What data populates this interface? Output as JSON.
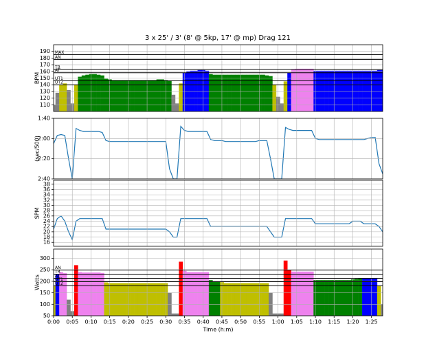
{
  "chart_data": [
    {
      "type": "zone_area",
      "title": "3 x 25' / 3' (8' @ 5kp, 17' @ mp) Drag 121",
      "ylabel": "BPM",
      "ylim": [
        100,
        200
      ],
      "yticks": [
        110,
        120,
        130,
        140,
        150,
        160,
        170,
        180,
        190
      ],
      "grid": true,
      "zones": [
        {
          "name": "UT2",
          "value": 140
        },
        {
          "name": "UT1",
          "value": 146
        },
        {
          "name": "AT",
          "value": 158
        },
        {
          "name": "TR",
          "value": 163
        },
        {
          "name": "AN",
          "value": 178
        },
        {
          "name": "MAX",
          "value": 185
        }
      ],
      "zone_colors": [
        "#808080",
        "#bfbf00",
        "#008000",
        "#0000ff",
        "#ee82ee",
        "#ff0000",
        "#8b0000"
      ],
      "x": [
        0,
        1,
        2,
        3,
        4,
        5,
        6,
        7,
        8,
        9,
        10,
        11,
        12,
        13,
        14,
        15,
        16,
        17,
        18,
        19,
        20,
        21,
        22,
        23,
        24,
        25,
        26,
        27,
        28,
        29,
        30,
        31,
        32,
        33,
        34,
        35,
        36,
        37,
        38,
        39,
        40,
        41,
        42,
        43,
        44,
        45,
        46,
        47,
        48,
        49,
        50,
        51,
        52,
        53,
        54,
        55,
        56,
        57,
        58,
        59,
        60,
        61,
        62,
        63,
        64,
        65,
        66,
        67,
        68,
        69,
        70,
        71,
        72,
        73,
        74,
        75,
        76,
        77,
        78,
        79,
        80,
        81,
        82,
        83,
        84,
        85,
        86,
        87,
        88
      ],
      "values": [
        110,
        128,
        140,
        142,
        132,
        112,
        140,
        152,
        154,
        155,
        156,
        156,
        155,
        154,
        149,
        148,
        147,
        147,
        147,
        147,
        147,
        147,
        147,
        147,
        147,
        147,
        147,
        147,
        148,
        148,
        147,
        146,
        125,
        112,
        142,
        158,
        160,
        161,
        161,
        162,
        162,
        161,
        156,
        155,
        155,
        155,
        155,
        155,
        155,
        155,
        155,
        155,
        155,
        155,
        155,
        155,
        155,
        154,
        153,
        140,
        122,
        112,
        145,
        158,
        163,
        164,
        164,
        164,
        164,
        164,
        161,
        161,
        161,
        161,
        161,
        161,
        161,
        161,
        161,
        161,
        161,
        161,
        161,
        161,
        161,
        161,
        161,
        162,
        162
      ]
    },
    {
      "type": "line",
      "ylabel": "(sec/500)",
      "color": "#1f77b4",
      "ylim": [
        160,
        100
      ],
      "yticks": [
        {
          "value": 100,
          "label": "1:40"
        },
        {
          "value": 120,
          "label": "2:00"
        },
        {
          "value": 140,
          "label": "2:20"
        },
        {
          "value": 160,
          "label": "2:40"
        }
      ],
      "grid": true,
      "x": [
        0,
        1,
        2,
        3,
        4,
        5,
        6,
        7,
        8,
        9,
        10,
        11,
        12,
        13,
        14,
        15,
        16,
        17,
        18,
        19,
        20,
        21,
        22,
        23,
        24,
        25,
        26,
        27,
        28,
        29,
        30,
        31,
        32,
        33,
        34,
        35,
        36,
        37,
        38,
        39,
        40,
        41,
        42,
        43,
        44,
        45,
        46,
        47,
        48,
        49,
        50,
        51,
        52,
        53,
        54,
        55,
        56,
        57,
        58,
        59,
        60,
        61,
        62,
        63,
        64,
        65,
        66,
        67,
        68,
        69,
        70,
        71,
        72,
        73,
        74,
        75,
        76,
        77,
        78,
        79,
        80,
        81,
        82,
        83,
        84,
        85,
        86,
        87,
        88
      ],
      "values": [
        125,
        117,
        116,
        117,
        140,
        160,
        110,
        112,
        113,
        113,
        113,
        113,
        113,
        114,
        122,
        123,
        123,
        123,
        123,
        123,
        123,
        123,
        123,
        123,
        123,
        123,
        123,
        123,
        123,
        123,
        123,
        150,
        160,
        160,
        108,
        112,
        113,
        113,
        113,
        113,
        113,
        113,
        121,
        122,
        122,
        122,
        123,
        123,
        123,
        123,
        123,
        123,
        123,
        123,
        123,
        122,
        122,
        122,
        140,
        160,
        160,
        160,
        109,
        111,
        112,
        112,
        112,
        112,
        112,
        112,
        120,
        121,
        121,
        121,
        121,
        121,
        121,
        121,
        121,
        121,
        121,
        121,
        121,
        121,
        120,
        119,
        119,
        145,
        155
      ]
    },
    {
      "type": "line",
      "ylabel": "SPM",
      "color": "#1f77b4",
      "ylim": [
        14.5,
        39.5
      ],
      "yticks": [
        16,
        18,
        20,
        22,
        24,
        26,
        28,
        30,
        32,
        34,
        36,
        38
      ],
      "grid": true,
      "x": [
        0,
        1,
        2,
        3,
        4,
        5,
        6,
        7,
        8,
        9,
        10,
        11,
        12,
        13,
        14,
        15,
        16,
        17,
        18,
        19,
        20,
        21,
        22,
        23,
        24,
        25,
        26,
        27,
        28,
        29,
        30,
        31,
        32,
        33,
        34,
        35,
        36,
        37,
        38,
        39,
        40,
        41,
        42,
        43,
        44,
        45,
        46,
        47,
        48,
        49,
        50,
        51,
        52,
        53,
        54,
        55,
        56,
        57,
        58,
        59,
        60,
        61,
        62,
        63,
        64,
        65,
        66,
        67,
        68,
        69,
        70,
        71,
        72,
        73,
        74,
        75,
        76,
        77,
        78,
        79,
        80,
        81,
        82,
        83,
        84,
        85,
        86,
        87,
        88
      ],
      "values": [
        21,
        25,
        26,
        24,
        20,
        17,
        24,
        25,
        25,
        25,
        25,
        25,
        25,
        25,
        21,
        21,
        21,
        21,
        21,
        21,
        21,
        21,
        21,
        21,
        21,
        21,
        21,
        21,
        21,
        21,
        21,
        20,
        18,
        18,
        25,
        25,
        25,
        25,
        25,
        25,
        25,
        25,
        22,
        22,
        22,
        22,
        22,
        22,
        22,
        22,
        22,
        22,
        22,
        22,
        22,
        22,
        22,
        22,
        20,
        18,
        18,
        18,
        25,
        25,
        25,
        25,
        25,
        25,
        25,
        25,
        23,
        23,
        23,
        23,
        23,
        23,
        23,
        23,
        23,
        23,
        24,
        24,
        24,
        23,
        23,
        23,
        23,
        22,
        20
      ]
    },
    {
      "type": "zone_area",
      "ylabel": "Watts",
      "xlabel": "Time (h:m)",
      "ylim": [
        50,
        340
      ],
      "yticks": [
        50,
        100,
        150,
        200,
        250,
        300
      ],
      "grid": true,
      "xlim": [
        0,
        88
      ],
      "xticks": [
        {
          "value": 0,
          "label": "0:00"
        },
        {
          "value": 5,
          "label": "0:05"
        },
        {
          "value": 10,
          "label": "0:10"
        },
        {
          "value": 15,
          "label": "0:15"
        },
        {
          "value": 20,
          "label": "0:20"
        },
        {
          "value": 25,
          "label": "0:25"
        },
        {
          "value": 30,
          "label": "0:30"
        },
        {
          "value": 35,
          "label": "0:35"
        },
        {
          "value": 40,
          "label": "0:40"
        },
        {
          "value": 45,
          "label": "0:45"
        },
        {
          "value": 50,
          "label": "0:50"
        },
        {
          "value": 55,
          "label": "0:55"
        },
        {
          "value": 60,
          "label": "1:00"
        },
        {
          "value": 65,
          "label": "1:05"
        },
        {
          "value": 70,
          "label": "1:10"
        },
        {
          "value": 75,
          "label": "1:15"
        },
        {
          "value": 80,
          "label": "1:20"
        },
        {
          "value": 85,
          "label": "1:25"
        }
      ],
      "zones": [
        {
          "name": "UT2",
          "value": 180
        },
        {
          "name": "UT1",
          "value": 198
        },
        {
          "name": "AT",
          "value": 213
        },
        {
          "name": "TR",
          "value": 231
        },
        {
          "name": "AN",
          "value": 249
        }
      ],
      "zone_colors": [
        "#808080",
        "#bfbf00",
        "#008000",
        "#0000ff",
        "#ee82ee",
        "#ff0000"
      ],
      "x": [
        0,
        1,
        2,
        3,
        4,
        5,
        6,
        7,
        8,
        9,
        10,
        11,
        12,
        13,
        14,
        15,
        16,
        17,
        18,
        19,
        20,
        21,
        22,
        23,
        24,
        25,
        26,
        27,
        28,
        29,
        30,
        31,
        32,
        33,
        34,
        35,
        36,
        37,
        38,
        39,
        40,
        41,
        42,
        43,
        44,
        45,
        46,
        47,
        48,
        49,
        50,
        51,
        52,
        53,
        54,
        55,
        56,
        57,
        58,
        59,
        60,
        61,
        62,
        63,
        64,
        65,
        66,
        67,
        68,
        69,
        70,
        71,
        72,
        73,
        74,
        75,
        76,
        77,
        78,
        79,
        80,
        81,
        82,
        83,
        84,
        85,
        86,
        87,
        88
      ],
      "values": [
        180,
        230,
        240,
        235,
        120,
        70,
        270,
        240,
        238,
        238,
        238,
        238,
        238,
        236,
        195,
        192,
        192,
        192,
        192,
        192,
        192,
        192,
        192,
        192,
        192,
        192,
        192,
        192,
        192,
        192,
        192,
        150,
        60,
        60,
        285,
        245,
        240,
        240,
        240,
        240,
        240,
        240,
        205,
        200,
        198,
        196,
        192,
        192,
        192,
        192,
        192,
        192,
        192,
        192,
        192,
        192,
        192,
        192,
        150,
        60,
        60,
        60,
        290,
        250,
        242,
        242,
        242,
        242,
        242,
        242,
        205,
        205,
        205,
        205,
        205,
        205,
        205,
        205,
        205,
        205,
        208,
        210,
        212,
        214,
        214,
        214,
        214,
        180,
        100
      ]
    }
  ]
}
